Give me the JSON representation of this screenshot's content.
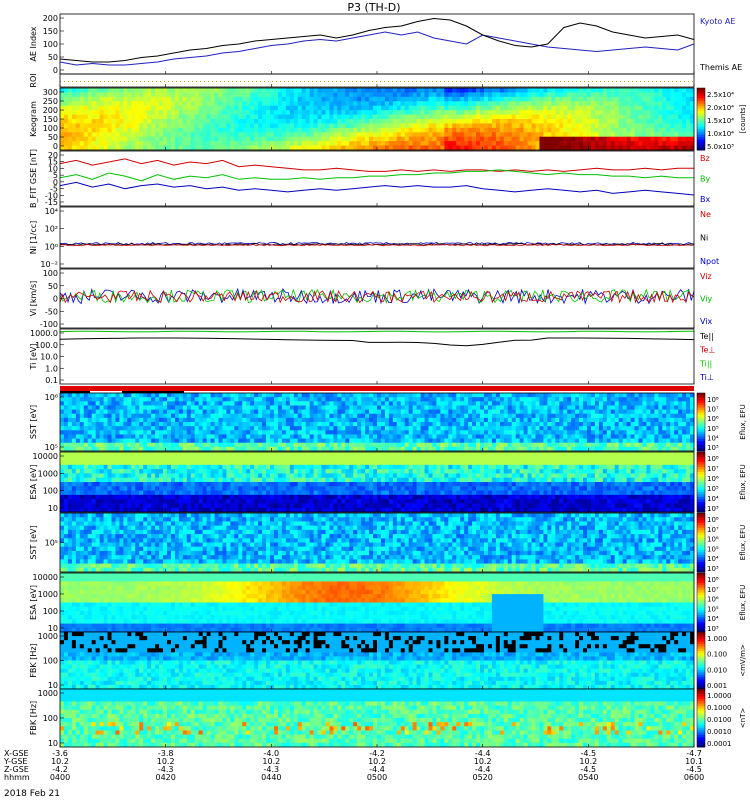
{
  "title": "P3 (TH-D)",
  "date_label": "2018 Feb 21",
  "chart_data": [
    {
      "id": "ae",
      "type": "line",
      "ylabel": "AE Index",
      "ylim": [
        0,
        200
      ],
      "yticks": [
        "200",
        "150",
        "100",
        "50",
        "0"
      ],
      "series": [
        {
          "name": "Kyoto AE",
          "color": "#2020c0",
          "values": [
            40,
            30,
            35,
            30,
            30,
            35,
            40,
            50,
            55,
            60,
            70,
            75,
            85,
            95,
            100,
            110,
            115,
            110,
            120,
            130,
            140,
            130,
            140,
            120,
            110,
            100,
            130,
            120,
            110,
            100,
            90,
            85,
            80,
            75,
            80,
            85,
            90,
            85,
            80,
            100
          ]
        },
        {
          "name": "Themis AE",
          "color": "#000000",
          "values": [
            50,
            45,
            40,
            40,
            45,
            55,
            60,
            70,
            80,
            85,
            95,
            100,
            110,
            115,
            120,
            125,
            130,
            120,
            130,
            145,
            155,
            160,
            175,
            185,
            180,
            160,
            130,
            110,
            95,
            90,
            100,
            155,
            170,
            160,
            140,
            130,
            120,
            125,
            130,
            115
          ]
        }
      ]
    },
    {
      "id": "roi",
      "type": "line",
      "ylabel": "ROI",
      "series": []
    },
    {
      "id": "keogram",
      "type": "heatmap",
      "ylabel": "Keogram",
      "ylim": [
        0,
        300
      ],
      "yticks": [
        "300",
        "250",
        "200",
        "150",
        "100",
        "50",
        "0"
      ],
      "colorbar": {
        "label": "[counts]",
        "ticks": [
          "2.5x10⁴",
          "2.0x10⁴",
          "1.5x10⁴",
          "1.0x10⁴",
          "5.0x10³"
        ]
      }
    },
    {
      "id": "bfield",
      "type": "line",
      "ylabel": "B_FIT GSE [nT]",
      "ylim": [
        -15,
        20
      ],
      "yticks": [
        "20",
        "15",
        "10",
        "5",
        "0",
        "-5",
        "-10",
        "-15"
      ],
      "series": [
        {
          "name": "Bz",
          "color": "#d00000",
          "values": [
            12,
            14,
            11,
            13,
            15,
            12,
            14,
            11,
            13,
            12,
            14,
            10,
            11,
            10,
            9,
            8,
            8,
            9,
            8,
            7,
            7,
            8,
            7,
            8,
            7,
            8,
            8,
            7,
            8,
            7,
            8,
            7,
            8,
            9,
            8,
            8,
            9,
            8,
            9,
            9
          ]
        },
        {
          "name": "By",
          "color": "#00c000",
          "values": [
            3,
            5,
            2,
            6,
            4,
            1,
            5,
            2,
            4,
            3,
            5,
            2,
            3,
            2,
            2,
            3,
            2,
            3,
            3,
            4,
            4,
            5,
            5,
            6,
            6,
            7,
            7,
            8,
            7,
            6,
            5,
            6,
            5,
            5,
            4,
            4,
            3,
            4,
            3,
            3
          ]
        },
        {
          "name": "Bx",
          "color": "#0000c0",
          "values": [
            -2,
            0,
            -3,
            -1,
            -4,
            -2,
            -1,
            -3,
            -2,
            -4,
            -3,
            -5,
            -4,
            -5,
            -6,
            -5,
            -4,
            -5,
            -4,
            -3,
            -2,
            -3,
            -2,
            -3,
            -3,
            -2,
            -4,
            -5,
            -6,
            -5,
            -4,
            -5,
            -6,
            -5,
            -7,
            -6,
            -5,
            -6,
            -7,
            -8
          ]
        }
      ]
    },
    {
      "id": "density",
      "type": "line",
      "ylabel": "Ni [1/cc]",
      "yticks": [
        "10⁴",
        "10²",
        "10⁰",
        "10⁻²"
      ],
      "series": [
        {
          "name": "Ne",
          "color": "#d00000"
        },
        {
          "name": "Ni",
          "color": "#000000"
        },
        {
          "name": "Npot",
          "color": "#0000c0"
        }
      ]
    },
    {
      "id": "velocity",
      "type": "line",
      "ylabel": "Vi [km/s]",
      "ylim": [
        -100,
        100
      ],
      "yticks": [
        "100",
        "50",
        "0",
        "-50",
        "-100"
      ],
      "series": [
        {
          "name": "Viz",
          "color": "#d00000"
        },
        {
          "name": "Viy",
          "color": "#00c000"
        },
        {
          "name": "Vix",
          "color": "#0000c0"
        }
      ]
    },
    {
      "id": "temperature",
      "type": "line",
      "ylabel": "Ti [eV]",
      "yticks": [
        "1000.0",
        "100.0",
        "10.0",
        "1.0",
        "0.1"
      ],
      "series": [
        {
          "name": "Te||",
          "color": "#000000"
        },
        {
          "name": "Te⊥",
          "color": "#d00000"
        },
        {
          "name": "Ti||",
          "color": "#00c000"
        },
        {
          "name": "Ti⊥",
          "color": "#0000c0"
        }
      ]
    },
    {
      "id": "sst_ion",
      "type": "heatmap",
      "ylabel": "SST [eV]",
      "yticks": [
        "10⁶",
        "10⁵"
      ],
      "colorbar": {
        "label": "Eflux, EFU",
        "ticks": [
          "10⁸",
          "10⁷",
          "10⁶",
          "10⁵",
          "10⁴",
          "10³"
        ]
      }
    },
    {
      "id": "esa_ion",
      "type": "heatmap",
      "ylabel": "ESA [eV]",
      "yticks": [
        "10000",
        "1000",
        "100",
        "10"
      ],
      "colorbar": {
        "label": "Eflux, EFU",
        "ticks": [
          "10⁸",
          "10⁷",
          "10⁶",
          "10⁵",
          "10⁴",
          "10³"
        ]
      }
    },
    {
      "id": "sst_elec",
      "type": "heatmap",
      "ylabel": "SST [eV]",
      "yticks": [
        "10⁵"
      ],
      "colorbar": {
        "label": "Eflux, EFU",
        "ticks": [
          "10⁸",
          "10⁷",
          "10⁶",
          "10⁵",
          "10⁴",
          "10³"
        ]
      }
    },
    {
      "id": "esa_elec",
      "type": "heatmap",
      "ylabel": "ESA [eV]",
      "yticks": [
        "10000",
        "1000",
        "100",
        "10"
      ],
      "colorbar": {
        "label": "Eflux, EFU",
        "ticks": [
          "10⁸",
          "10⁷",
          "10⁶",
          "10⁵",
          "10⁴",
          "10³"
        ]
      }
    },
    {
      "id": "fbk_e",
      "type": "heatmap",
      "ylabel": "FBK [Hz]",
      "yticks": [
        "1000",
        "100",
        "10"
      ],
      "colorbar": {
        "label": "<mV/m>",
        "ticks": [
          "1.000",
          "0.100",
          "0.010",
          "0.001"
        ]
      }
    },
    {
      "id": "fbk_b",
      "type": "heatmap",
      "ylabel": "FBK [Hz]",
      "yticks": [
        "1000",
        "100",
        "10"
      ],
      "colorbar": {
        "label": "<nT>",
        "ticks": [
          "1.0000",
          "0.1000",
          "0.0100",
          "0.0010",
          "0.0001"
        ]
      }
    }
  ],
  "x_axis": {
    "row_labels": [
      "X-GSE",
      "Y-GSE",
      "Z-GSE",
      "hhmm"
    ],
    "columns": [
      {
        "x": "-3.6",
        "y": "10.2",
        "z": "-4.2",
        "time": "0400"
      },
      {
        "x": "-3.8",
        "y": "10.2",
        "z": "-4.3",
        "time": "0420"
      },
      {
        "x": "-4.0",
        "y": "10.2",
        "z": "-4.3",
        "time": "0440"
      },
      {
        "x": "-4.2",
        "y": "10.2",
        "z": "-4.4",
        "time": "0500"
      },
      {
        "x": "-4.4",
        "y": "10.2",
        "z": "-4.4",
        "time": "0520"
      },
      {
        "x": "-4.5",
        "y": "10.2",
        "z": "-4.5",
        "time": "0540"
      },
      {
        "x": "-4.7",
        "y": "10.1",
        "z": "-4.5",
        "time": "0600"
      }
    ]
  }
}
